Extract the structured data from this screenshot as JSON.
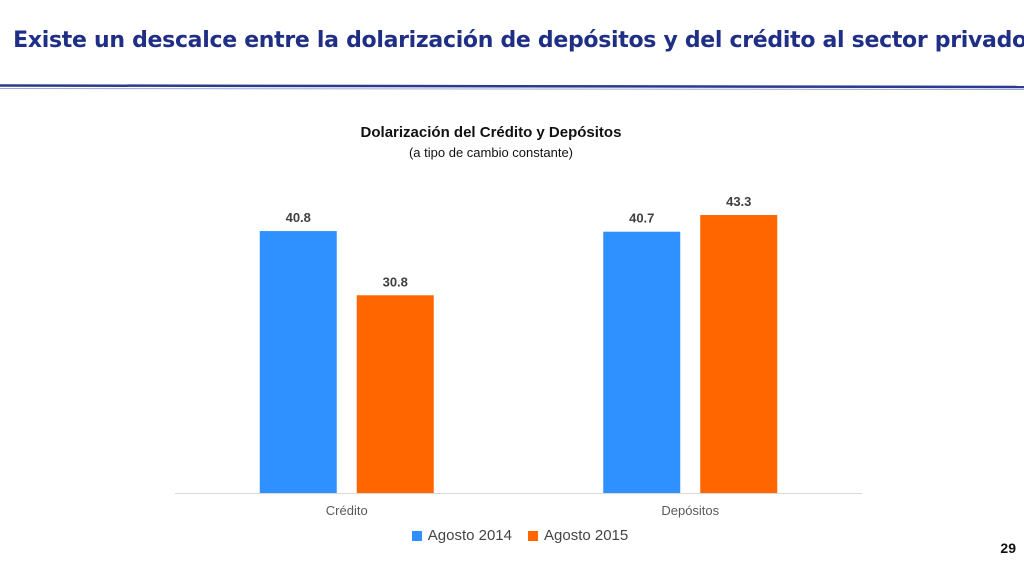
{
  "slide": {
    "title": "Existe un descalce entre la dolarización de depósitos y del crédito al sector privado",
    "page_number": "29"
  },
  "colors": {
    "title": "#1f2f86",
    "rule": "#2b3a8f",
    "series_2014": "#2e91ff",
    "series_2015": "#ff6600"
  },
  "chart_data": {
    "type": "bar",
    "title": "Dolarización del Crédito y Depósitos",
    "subtitle": "(a tipo de cambio constante)",
    "categories": [
      "Crédito",
      "Depósitos"
    ],
    "series": [
      {
        "name": "Agosto 2014",
        "values": [
          40.8,
          40.7
        ],
        "color": "#2e91ff"
      },
      {
        "name": "Agosto 2015",
        "values": [
          30.8,
          43.3
        ],
        "color": "#ff6600"
      }
    ],
    "ylim": [
      0,
      50
    ],
    "grid": false,
    "data_labels": true,
    "legend": "bottom"
  }
}
